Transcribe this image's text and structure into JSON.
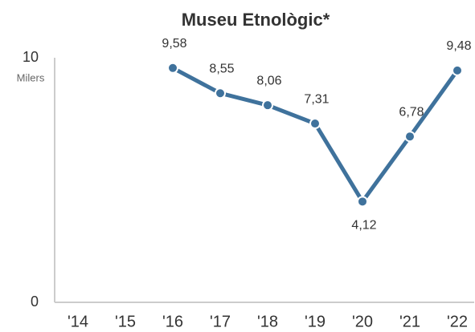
{
  "chart_data": {
    "type": "line",
    "title": "Museu Etnològic*",
    "y_label": "Milers",
    "categories": [
      "'14",
      "'15",
      "'16",
      "'17",
      "'18",
      "'19",
      "'20",
      "'21",
      "'22"
    ],
    "series": [
      {
        "name": "Museu Etnològic",
        "color": "#3f729c",
        "values": [
          null,
          null,
          9.58,
          8.55,
          8.06,
          7.31,
          4.12,
          6.78,
          9.48
        ],
        "value_labels": [
          null,
          null,
          "9,58",
          "8,55",
          "8,06",
          "7,31",
          "4,12",
          "6,78",
          "9,48"
        ]
      }
    ],
    "ylim": [
      0,
      10
    ],
    "yticks": [
      0,
      10
    ],
    "grid": false
  }
}
